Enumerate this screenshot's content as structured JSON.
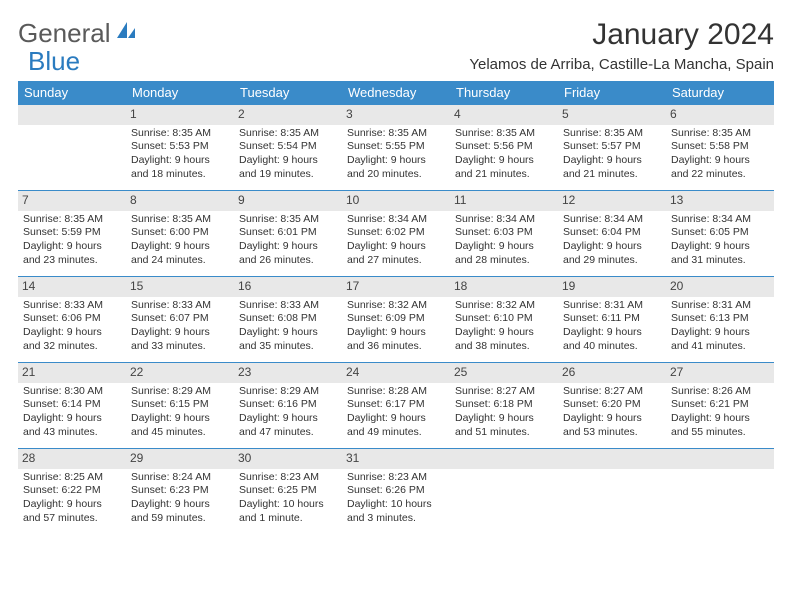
{
  "logo": {
    "text1": "General",
    "text2": "Blue"
  },
  "title": "January 2024",
  "location": "Yelamos de Arriba, Castille-La Mancha, Spain",
  "colors": {
    "header_bg": "#3a8bc9",
    "header_fg": "#ffffff",
    "daynum_bg": "#e8e8e8",
    "border": "#3a8bc9",
    "text": "#333333",
    "logo_gray": "#5a5a5a",
    "logo_blue": "#2a7bbf"
  },
  "weekdays": [
    "Sunday",
    "Monday",
    "Tuesday",
    "Wednesday",
    "Thursday",
    "Friday",
    "Saturday"
  ],
  "weeks": [
    [
      null,
      {
        "n": "1",
        "sr": "8:35 AM",
        "ss": "5:53 PM",
        "dl": "9 hours and 18 minutes."
      },
      {
        "n": "2",
        "sr": "8:35 AM",
        "ss": "5:54 PM",
        "dl": "9 hours and 19 minutes."
      },
      {
        "n": "3",
        "sr": "8:35 AM",
        "ss": "5:55 PM",
        "dl": "9 hours and 20 minutes."
      },
      {
        "n": "4",
        "sr": "8:35 AM",
        "ss": "5:56 PM",
        "dl": "9 hours and 21 minutes."
      },
      {
        "n": "5",
        "sr": "8:35 AM",
        "ss": "5:57 PM",
        "dl": "9 hours and 21 minutes."
      },
      {
        "n": "6",
        "sr": "8:35 AM",
        "ss": "5:58 PM",
        "dl": "9 hours and 22 minutes."
      }
    ],
    [
      {
        "n": "7",
        "sr": "8:35 AM",
        "ss": "5:59 PM",
        "dl": "9 hours and 23 minutes."
      },
      {
        "n": "8",
        "sr": "8:35 AM",
        "ss": "6:00 PM",
        "dl": "9 hours and 24 minutes."
      },
      {
        "n": "9",
        "sr": "8:35 AM",
        "ss": "6:01 PM",
        "dl": "9 hours and 26 minutes."
      },
      {
        "n": "10",
        "sr": "8:34 AM",
        "ss": "6:02 PM",
        "dl": "9 hours and 27 minutes."
      },
      {
        "n": "11",
        "sr": "8:34 AM",
        "ss": "6:03 PM",
        "dl": "9 hours and 28 minutes."
      },
      {
        "n": "12",
        "sr": "8:34 AM",
        "ss": "6:04 PM",
        "dl": "9 hours and 29 minutes."
      },
      {
        "n": "13",
        "sr": "8:34 AM",
        "ss": "6:05 PM",
        "dl": "9 hours and 31 minutes."
      }
    ],
    [
      {
        "n": "14",
        "sr": "8:33 AM",
        "ss": "6:06 PM",
        "dl": "9 hours and 32 minutes."
      },
      {
        "n": "15",
        "sr": "8:33 AM",
        "ss": "6:07 PM",
        "dl": "9 hours and 33 minutes."
      },
      {
        "n": "16",
        "sr": "8:33 AM",
        "ss": "6:08 PM",
        "dl": "9 hours and 35 minutes."
      },
      {
        "n": "17",
        "sr": "8:32 AM",
        "ss": "6:09 PM",
        "dl": "9 hours and 36 minutes."
      },
      {
        "n": "18",
        "sr": "8:32 AM",
        "ss": "6:10 PM",
        "dl": "9 hours and 38 minutes."
      },
      {
        "n": "19",
        "sr": "8:31 AM",
        "ss": "6:11 PM",
        "dl": "9 hours and 40 minutes."
      },
      {
        "n": "20",
        "sr": "8:31 AM",
        "ss": "6:13 PM",
        "dl": "9 hours and 41 minutes."
      }
    ],
    [
      {
        "n": "21",
        "sr": "8:30 AM",
        "ss": "6:14 PM",
        "dl": "9 hours and 43 minutes."
      },
      {
        "n": "22",
        "sr": "8:29 AM",
        "ss": "6:15 PM",
        "dl": "9 hours and 45 minutes."
      },
      {
        "n": "23",
        "sr": "8:29 AM",
        "ss": "6:16 PM",
        "dl": "9 hours and 47 minutes."
      },
      {
        "n": "24",
        "sr": "8:28 AM",
        "ss": "6:17 PM",
        "dl": "9 hours and 49 minutes."
      },
      {
        "n": "25",
        "sr": "8:27 AM",
        "ss": "6:18 PM",
        "dl": "9 hours and 51 minutes."
      },
      {
        "n": "26",
        "sr": "8:27 AM",
        "ss": "6:20 PM",
        "dl": "9 hours and 53 minutes."
      },
      {
        "n": "27",
        "sr": "8:26 AM",
        "ss": "6:21 PM",
        "dl": "9 hours and 55 minutes."
      }
    ],
    [
      {
        "n": "28",
        "sr": "8:25 AM",
        "ss": "6:22 PM",
        "dl": "9 hours and 57 minutes."
      },
      {
        "n": "29",
        "sr": "8:24 AM",
        "ss": "6:23 PM",
        "dl": "9 hours and 59 minutes."
      },
      {
        "n": "30",
        "sr": "8:23 AM",
        "ss": "6:25 PM",
        "dl": "10 hours and 1 minute."
      },
      {
        "n": "31",
        "sr": "8:23 AM",
        "ss": "6:26 PM",
        "dl": "10 hours and 3 minutes."
      },
      null,
      null,
      null
    ]
  ],
  "labels": {
    "sunrise": "Sunrise: ",
    "sunset": "Sunset: ",
    "daylight": "Daylight: "
  }
}
